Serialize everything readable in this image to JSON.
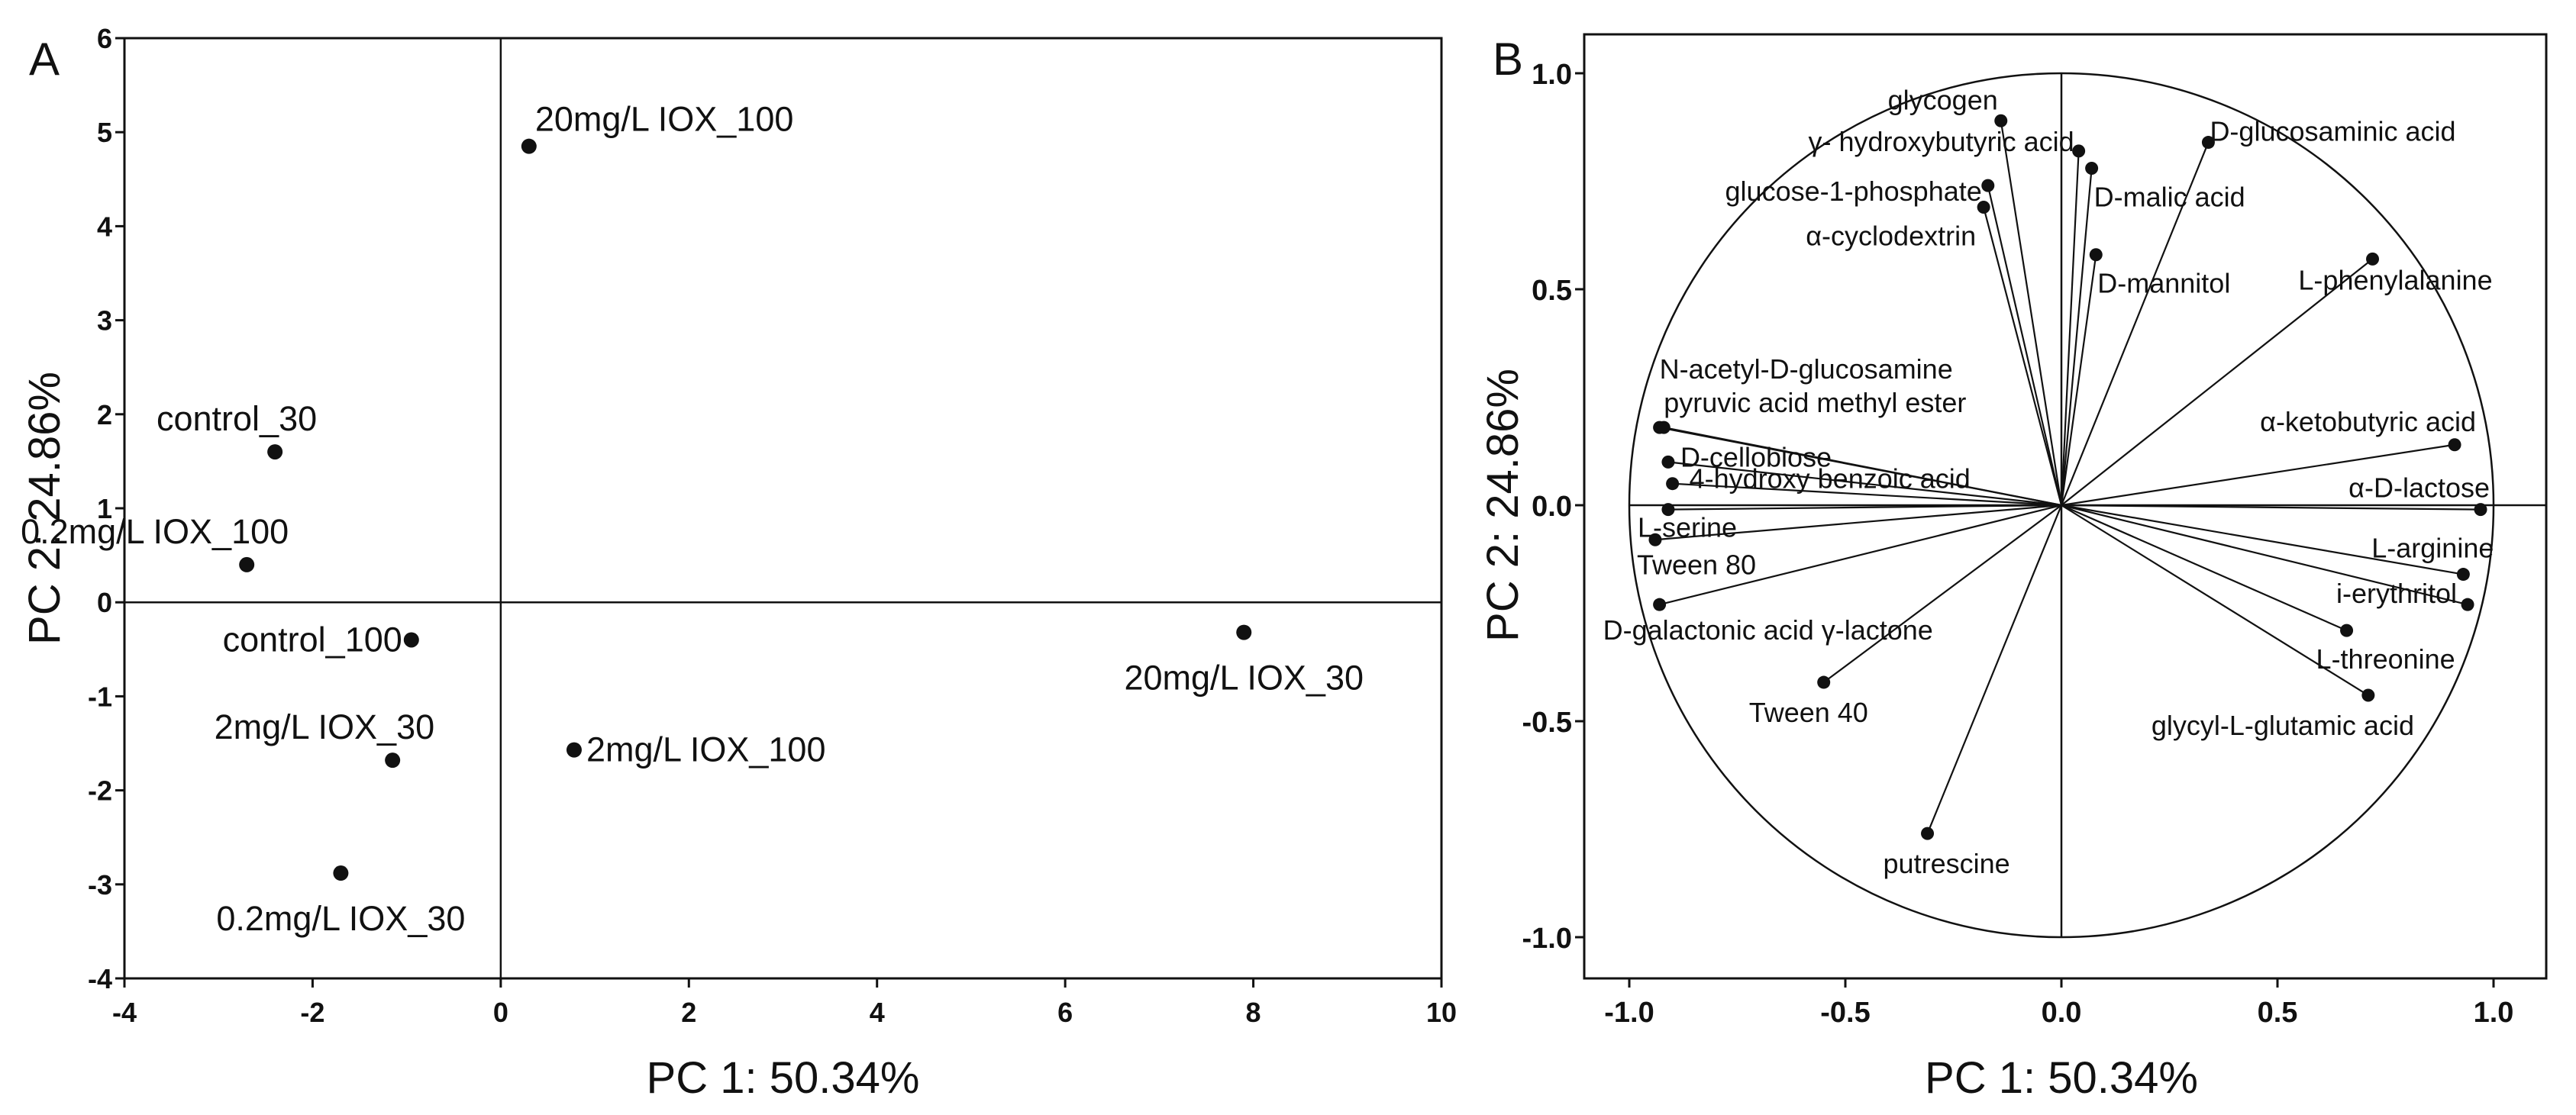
{
  "chart_data": [
    {
      "panel": "A",
      "type": "scatter",
      "title": "",
      "xlabel": "PC 1: 50.34%",
      "ylabel": "PC 2: 24.86%",
      "xlim": [
        -4,
        10
      ],
      "ylim": [
        -4,
        6
      ],
      "xticks": [
        "-4",
        "-2",
        "0",
        "2",
        "4",
        "6",
        "8",
        "10"
      ],
      "yticks": [
        "-4",
        "-3",
        "-2",
        "-1",
        "0",
        "1",
        "2",
        "3",
        "4",
        "5",
        "6"
      ],
      "reference_lines": {
        "x": 0,
        "y": 0
      },
      "points": [
        {
          "label": "20mg/L IOX_100",
          "x": 0.3,
          "y": 4.85,
          "label_side": "above-right"
        },
        {
          "label": "control_30",
          "x": -2.4,
          "y": 1.6,
          "label_side": "above-left"
        },
        {
          "label": "0.2mg/L IOX_100",
          "x": -2.7,
          "y": 0.4,
          "label_side": "above-left"
        },
        {
          "label": "control_100",
          "x": -0.95,
          "y": -0.4,
          "label_side": "left"
        },
        {
          "label": "20mg/L IOX_30",
          "x": 7.9,
          "y": -0.32,
          "label_side": "below"
        },
        {
          "label": "2mg/L IOX_30",
          "x": -1.15,
          "y": -1.68,
          "label_side": "above-left"
        },
        {
          "label": "2mg/L IOX_100",
          "x": 0.78,
          "y": -1.57,
          "label_side": "right"
        },
        {
          "label": "0.2mg/L IOX_30",
          "x": -1.7,
          "y": -2.88,
          "label_side": "below"
        }
      ]
    },
    {
      "panel": "B",
      "type": "scatter",
      "subtype": "correlation-circle",
      "title": "",
      "xlabel": "PC 1: 50.34%",
      "ylabel": "PC 2: 24.86%",
      "xlim": [
        -1.1,
        1.1
      ],
      "ylim": [
        -1.1,
        1.1
      ],
      "xticks": [
        "-1.0",
        "-0.5",
        "0.0",
        "0.5",
        "1.0"
      ],
      "yticks": [
        "-1.0",
        "-0.5",
        "0.0",
        "0.5",
        "1.0"
      ],
      "unit_circle": true,
      "reference_lines": {
        "x": 0,
        "y": 0
      },
      "variables": [
        {
          "label": "glycogen",
          "x": -0.14,
          "y": 0.89,
          "label_side": "above-left"
        },
        {
          "label": "γ- hydroxybutyric acid",
          "x": 0.04,
          "y": 0.82,
          "label_side": "left"
        },
        {
          "label": "D-glucosaminic acid",
          "x": 0.34,
          "y": 0.84,
          "label_side": "right"
        },
        {
          "label": "D-malic acid",
          "x": 0.07,
          "y": 0.78,
          "label_side": "below-right"
        },
        {
          "label": "glucose-1-phosphate",
          "x": -0.17,
          "y": 0.74,
          "label_side": "left"
        },
        {
          "label": "α-cyclodextrin",
          "x": -0.18,
          "y": 0.69,
          "label_side": "below-left"
        },
        {
          "label": "D-mannitol",
          "x": 0.08,
          "y": 0.58,
          "label_side": "below-right"
        },
        {
          "label": "L-phenylalanine",
          "x": 0.72,
          "y": 0.57,
          "label_side": "below"
        },
        {
          "label": "N-acetyl-D-glucosamine",
          "x": -0.93,
          "y": 0.18,
          "label_side": "above-right"
        },
        {
          "label": "pyruvic acid methyl ester",
          "x": -0.92,
          "y": 0.18,
          "label_side": "above-right"
        },
        {
          "label": "D-cellobiose",
          "x": -0.91,
          "y": 0.1,
          "label_side": "right"
        },
        {
          "label": "4-hydroxy benzoic acid",
          "x": -0.9,
          "y": 0.05,
          "label_side": "right"
        },
        {
          "label": "L-serine",
          "x": -0.91,
          "y": -0.01,
          "label_side": "below"
        },
        {
          "label": "Tween 80",
          "x": -0.94,
          "y": -0.08,
          "label_side": "below"
        },
        {
          "label": "D-galactonic acid γ-lactone",
          "x": -0.93,
          "y": -0.23,
          "label_side": "below"
        },
        {
          "label": "Tween 40",
          "x": -0.55,
          "y": -0.41,
          "label_side": "below"
        },
        {
          "label": "putrescine",
          "x": -0.31,
          "y": -0.76,
          "label_side": "below"
        },
        {
          "label": "α-ketobutyric acid",
          "x": 0.91,
          "y": 0.14,
          "label_side": "above-left"
        },
        {
          "label": "α-D-lactose",
          "x": 0.97,
          "y": -0.01,
          "label_side": "above-left"
        },
        {
          "label": "L-arginine",
          "x": 0.93,
          "y": -0.16,
          "label_side": "above"
        },
        {
          "label": "i-erythritol",
          "x": 0.94,
          "y": -0.23,
          "label_side": "above-left"
        },
        {
          "label": "L-threonine",
          "x": 0.66,
          "y": -0.29,
          "label_side": "below-right"
        },
        {
          "label": "glycyl-L-glutamic acid",
          "x": 0.71,
          "y": -0.44,
          "label_side": "below"
        }
      ]
    }
  ],
  "figure": {
    "panel_a_letter": "A",
    "panel_b_letter": "B"
  }
}
